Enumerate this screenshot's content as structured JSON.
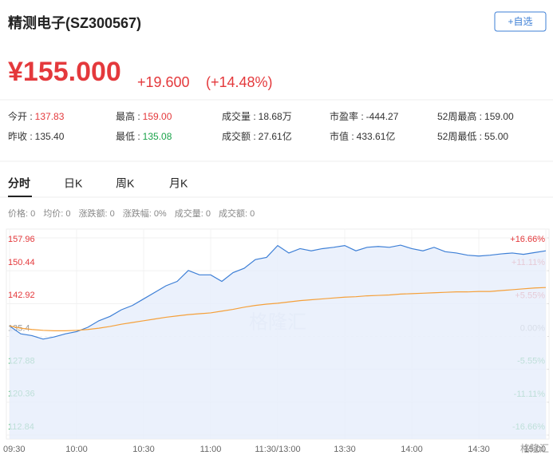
{
  "header": {
    "title": "精测电子(SZ300567)",
    "button": "+自选",
    "price": "¥155.000",
    "change": "+19.600",
    "change_pct": "(+14.48%)"
  },
  "stats": [
    [
      {
        "label": "今开 :",
        "value": "137.83",
        "color": "#e4393c"
      },
      {
        "label": "最高 :",
        "value": "159.00",
        "color": "#e4393c"
      },
      {
        "label": "成交量 :",
        "value": "18.68万",
        "color": "#333333"
      },
      {
        "label": "市盈率 :",
        "value": "-444.27",
        "color": "#333333"
      },
      {
        "label": "52周最高 :",
        "value": "159.00",
        "color": "#333333"
      }
    ],
    [
      {
        "label": "昨收 :",
        "value": "135.40",
        "color": "#333333"
      },
      {
        "label": "最低 :",
        "value": "135.08",
        "color": "#1aa34a"
      },
      {
        "label": "成交额 :",
        "value": "27.61亿",
        "color": "#333333"
      },
      {
        "label": "市值 :",
        "value": "433.61亿",
        "color": "#333333"
      },
      {
        "label": "52周最低 :",
        "value": "55.00",
        "color": "#333333"
      }
    ]
  ],
  "tabs": [
    "分时",
    "日K",
    "周K",
    "月K"
  ],
  "info": [
    "价格: 0",
    "均价: 0",
    "涨跌额: 0",
    "涨跌幅: 0%",
    "成交量: 0",
    "成交额: 0"
  ],
  "watermark": "格隆汇",
  "chart_data": {
    "type": "line",
    "categories": [
      "09:30",
      null,
      null,
      null,
      null,
      null,
      "10:00",
      null,
      null,
      null,
      null,
      null,
      "10:30",
      null,
      null,
      null,
      null,
      null,
      "11:00",
      null,
      null,
      null,
      null,
      null,
      "11:30/13:00",
      null,
      null,
      null,
      null,
      null,
      "13:30",
      null,
      null,
      null,
      null,
      null,
      "14:00",
      null,
      null,
      null,
      null,
      null,
      "14:30",
      null,
      null,
      null,
      null,
      null,
      "15:00"
    ],
    "series": [
      {
        "name": "价格",
        "color": "#3d7fd6",
        "values": [
          137.8,
          136.0,
          135.6,
          134.8,
          135.3,
          136.0,
          136.5,
          137.5,
          139.0,
          140.0,
          141.5,
          142.5,
          144.0,
          145.5,
          147.0,
          148.0,
          150.5,
          149.5,
          149.5,
          148.0,
          150.0,
          151.0,
          153.0,
          153.5,
          156.2,
          154.5,
          155.5,
          155.0,
          155.5,
          155.8,
          156.2,
          155.0,
          155.8,
          156.0,
          155.8,
          156.3,
          155.5,
          155.0,
          155.8,
          154.8,
          154.5,
          154.0,
          153.8,
          154.0,
          154.3,
          154.5,
          154.2,
          154.6,
          155.0
        ]
      },
      {
        "name": "均价",
        "color": "#f5a03a",
        "values": [
          137.8,
          137.3,
          137.0,
          136.8,
          136.7,
          136.7,
          136.8,
          137.0,
          137.3,
          137.7,
          138.2,
          138.6,
          139.0,
          139.4,
          139.8,
          140.1,
          140.4,
          140.6,
          140.8,
          141.2,
          141.6,
          142.1,
          142.5,
          142.8,
          143.0,
          143.3,
          143.6,
          143.8,
          144.0,
          144.2,
          144.4,
          144.5,
          144.7,
          144.8,
          144.9,
          145.1,
          145.2,
          145.3,
          145.4,
          145.5,
          145.6,
          145.6,
          145.7,
          145.7,
          145.9,
          146.1,
          146.3,
          146.5,
          146.6
        ]
      }
    ],
    "ylim": [
      112.84,
      157.96
    ],
    "yticks": [
      157.96,
      150.44,
      142.92,
      135.4,
      127.88,
      120.36,
      112.84
    ],
    "y2lim": [
      -16.66,
      16.66
    ],
    "y2ticks": [
      {
        "value": 16.66,
        "label": "+16.66%"
      },
      {
        "value": 11.11,
        "label": "+11.11%"
      },
      {
        "value": 5.55,
        "label": "+5.55%"
      },
      {
        "value": 0,
        "label": "0.00%"
      },
      {
        "value": -5.55,
        "label": "-5.55%"
      },
      {
        "value": -11.11,
        "label": "-11.11%"
      },
      {
        "value": -16.66,
        "label": "-16.66%"
      }
    ],
    "up_color": "#e4393c",
    "down_color": "#1aa34a",
    "flat_color": "#999999",
    "area_color": "#e6eefb"
  }
}
